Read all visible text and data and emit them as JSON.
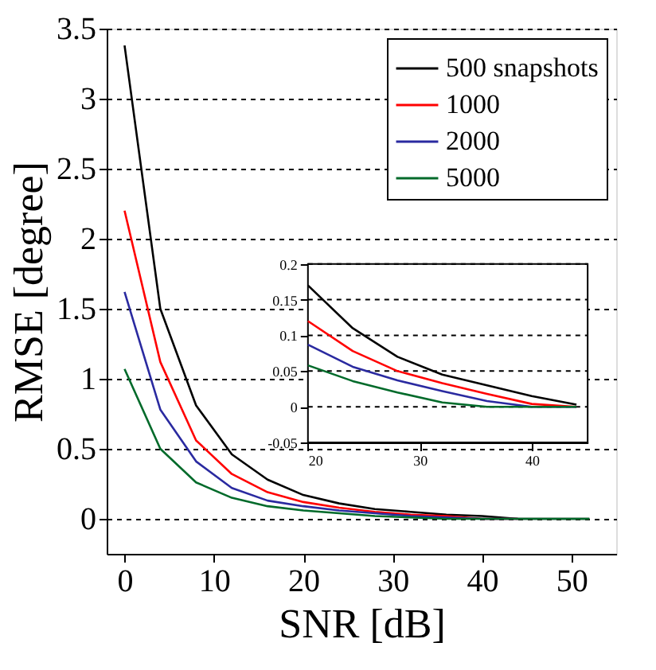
{
  "chart_data": [
    {
      "type": "line",
      "xlabel": "SNR [dB]",
      "ylabel": "RMSE [degree]",
      "x": [
        0,
        4,
        8,
        12,
        16,
        20,
        24,
        28,
        32,
        36,
        40,
        44,
        48,
        52
      ],
      "series": [
        {
          "name": "500 snapshots",
          "color": "#000000",
          "values": [
            3.38,
            1.5,
            0.81,
            0.46,
            0.28,
            0.17,
            0.11,
            0.07,
            0.05,
            0.03,
            0.02,
            0,
            0,
            0
          ]
        },
        {
          "name": "1000",
          "color": "#ff0000",
          "values": [
            2.2,
            1.12,
            0.56,
            0.32,
            0.19,
            0.12,
            0.08,
            0.05,
            0.03,
            0.02,
            0,
            0,
            null,
            null
          ]
        },
        {
          "name": "2000",
          "color": "#2a2aa0",
          "values": [
            1.62,
            0.78,
            0.41,
            0.22,
            0.13,
            0.09,
            0.06,
            0.04,
            0.02,
            0.01,
            0,
            0,
            null,
            null
          ]
        },
        {
          "name": "5000",
          "color": "#006a2a",
          "values": [
            1.07,
            0.5,
            0.26,
            0.15,
            0.09,
            0.06,
            0.04,
            0.02,
            0.01,
            0,
            0,
            0,
            0,
            0
          ]
        }
      ],
      "xlim": [
        -2,
        55
      ],
      "xticks": [
        0,
        10,
        20,
        30,
        40,
        50
      ],
      "ylim": [
        -0.25,
        3.5
      ],
      "yticks": [
        0,
        0.5,
        1,
        1.5,
        2,
        2.5,
        3,
        3.5
      ],
      "grid": "y",
      "legend": "top right",
      "line_style": "solid",
      "marker": "none"
    },
    {
      "type": "line",
      "x": [
        20,
        24,
        28,
        32,
        36,
        40,
        44
      ],
      "series": [
        {
          "color": "#000000",
          "values": [
            0.17,
            0.11,
            0.07,
            0.045,
            0.03,
            0.015,
            0.003
          ]
        },
        {
          "color": "#ff0000",
          "values": [
            0.12,
            0.078,
            0.05,
            0.033,
            0.018,
            0.004,
            0
          ]
        },
        {
          "color": "#2a2aa0",
          "values": [
            0.087,
            0.056,
            0.037,
            0.022,
            0.008,
            0,
            0
          ]
        },
        {
          "color": "#006a2a",
          "values": [
            0.058,
            0.036,
            0.02,
            0.006,
            0,
            0,
            0
          ]
        }
      ],
      "xlim": [
        20,
        45
      ],
      "xticks": [
        20,
        30,
        40
      ],
      "ylim": [
        -0.05,
        0.2
      ],
      "yticks": [
        -0.05,
        0,
        0.05,
        0.1,
        0.15,
        0.2
      ],
      "grid": "y",
      "line_style": "solid",
      "marker": "none"
    }
  ]
}
